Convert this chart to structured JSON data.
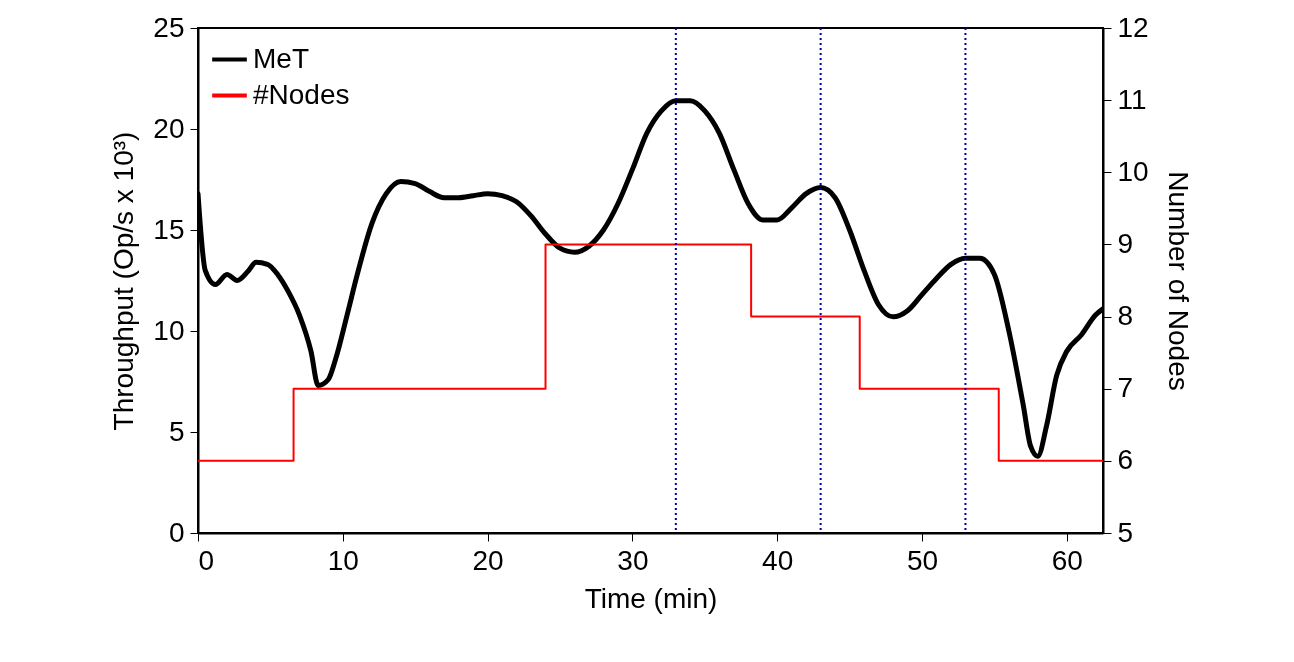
{
  "chart_data": {
    "type": "line",
    "xlabel": "Time (min)",
    "ylabel": "Throughput (Op/s x 10³)",
    "y2label": "Number of Nodes",
    "xlim": [
      0,
      62.5
    ],
    "xticks": [
      0,
      10,
      20,
      30,
      40,
      50,
      60
    ],
    "ylim": [
      0,
      25
    ],
    "yticks": [
      0,
      5,
      10,
      15,
      20,
      25
    ],
    "y2lim": [
      5,
      12
    ],
    "y2ticks": [
      5,
      6,
      7,
      8,
      9,
      10,
      11,
      12
    ],
    "grid": false,
    "legend": "top left",
    "marker": "none",
    "line_style": "solid",
    "series": [
      {
        "name": "MeT",
        "color": "#000000",
        "x": [
          0,
          0.5,
          1.2,
          2,
          2.7,
          3.5,
          4,
          4.8,
          5.5,
          6.2,
          7,
          7.8,
          8.3,
          9,
          9.5,
          10.3,
          11,
          12,
          13,
          14,
          15,
          16,
          17,
          18,
          19,
          20,
          21,
          22,
          23,
          24,
          25,
          26,
          27,
          28,
          29,
          30,
          31,
          32,
          33,
          34,
          35,
          36,
          37,
          38,
          39,
          40,
          41,
          42,
          43,
          44,
          45,
          46,
          47,
          48,
          49,
          50,
          51,
          52,
          53,
          54,
          55,
          56,
          57,
          57.5,
          58,
          58.6,
          59.3,
          60,
          61,
          62,
          62.5
        ],
        "values": [
          16.8,
          13,
          12.3,
          12.8,
          12.5,
          13,
          13.4,
          13.3,
          12.8,
          12,
          10.8,
          9,
          7.3,
          7.6,
          8.6,
          10.8,
          12.8,
          15.3,
          16.8,
          17.4,
          17.3,
          16.9,
          16.6,
          16.6,
          16.7,
          16.8,
          16.7,
          16.4,
          15.7,
          14.8,
          14.1,
          13.9,
          14.2,
          15,
          16.3,
          18,
          19.8,
          20.9,
          21.4,
          21.4,
          20.9,
          19.8,
          18,
          16.3,
          15.5,
          15.5,
          16.1,
          16.8,
          17.1,
          16.6,
          15,
          13,
          11.3,
          10.7,
          11,
          11.8,
          12.6,
          13.3,
          13.6,
          13.6,
          12.8,
          10,
          6.3,
          4.3,
          3.8,
          5.3,
          7.8,
          9,
          9.8,
          10.8,
          11.1
        ]
      },
      {
        "name": "#Nodes",
        "type": "step",
        "axis": "y2",
        "color": "#ff0000",
        "x": [
          0,
          6.6,
          24,
          38.2,
          45.7,
          55.3,
          62.5
        ],
        "values": [
          6,
          7,
          9,
          8,
          7,
          6,
          6
        ]
      }
    ],
    "ref_lines": [
      {
        "axis": "x",
        "value": 33,
        "color": "#0000aa",
        "line_style": "dotted"
      },
      {
        "axis": "x",
        "value": 43,
        "color": "#0000aa",
        "line_style": "dotted"
      },
      {
        "axis": "x",
        "value": 53,
        "color": "#0000aa",
        "line_style": "dotted"
      }
    ]
  }
}
